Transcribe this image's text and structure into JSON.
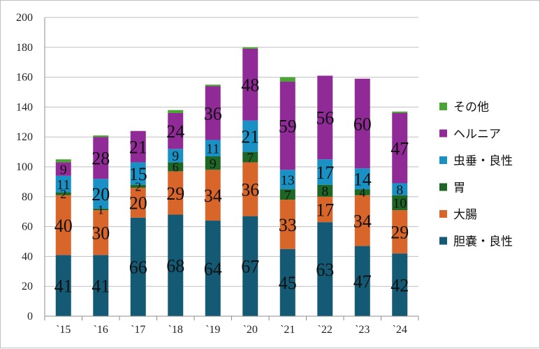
{
  "chart_data": {
    "type": "bar",
    "stacked": true,
    "categories": [
      "`15",
      "`16",
      "`17",
      "`18",
      "`19",
      "`20",
      "`21",
      "`22",
      "`23",
      "`24"
    ],
    "ylim": [
      0,
      200
    ],
    "yticks": [
      0,
      20,
      40,
      60,
      80,
      100,
      120,
      140,
      160,
      180,
      200
    ],
    "grid": true,
    "legend_position": "right",
    "series": [
      {
        "name": "胆嚢・良性",
        "color": "#145a74",
        "label_color": "#000000",
        "values": [
          41,
          41,
          66,
          68,
          64,
          67,
          45,
          63,
          47,
          42
        ]
      },
      {
        "name": "大腸",
        "color": "#d8652a",
        "label_color": "#000000",
        "values": [
          40,
          30,
          20,
          29,
          34,
          36,
          33,
          17,
          34,
          29
        ]
      },
      {
        "name": "胃",
        "color": "#1e6625",
        "label_color": "#ffffff",
        "values": [
          2,
          1,
          2,
          6,
          9,
          7,
          7,
          8,
          4,
          10
        ]
      },
      {
        "name": "虫垂・良性",
        "color": "#1a91c4",
        "label_color": "#000000",
        "values": [
          11,
          20,
          15,
          9,
          11,
          21,
          13,
          17,
          14,
          8
        ]
      },
      {
        "name": "ヘルニア",
        "color": "#8f2a97",
        "label_color": "#000000",
        "values": [
          9,
          28,
          21,
          24,
          36,
          48,
          59,
          56,
          60,
          47
        ]
      },
      {
        "name": "その他",
        "color": "#4aa436",
        "label_color": "#000000",
        "values": [
          2,
          1,
          0,
          2,
          1,
          1,
          3,
          0,
          0,
          1
        ]
      }
    ],
    "data_labels": {
      "胆嚢・良性": [
        "41",
        "41",
        "66",
        "68",
        "64",
        "67",
        "45",
        "63",
        "47",
        "42"
      ],
      "大腸": [
        "40",
        "30",
        "20",
        "29",
        "34",
        "36",
        "33",
        "17",
        "34",
        "29"
      ],
      "胃": [
        "2",
        "1",
        "2",
        "6",
        "9",
        "7",
        "7",
        "8",
        "4",
        "10"
      ],
      "虫垂・良性": [
        "11",
        "20",
        "15",
        "9",
        "11",
        "21",
        "13",
        "17",
        "14",
        "8"
      ],
      "ヘルニア": [
        "9",
        "28",
        "21",
        "24",
        "36",
        "48",
        "59",
        "56",
        "60",
        "47"
      ],
      "その他": []
    },
    "legend_order": [
      "その他",
      "ヘルニア",
      "虫垂・良性",
      "胃",
      "大腸",
      "胆嚢・良性"
    ]
  }
}
